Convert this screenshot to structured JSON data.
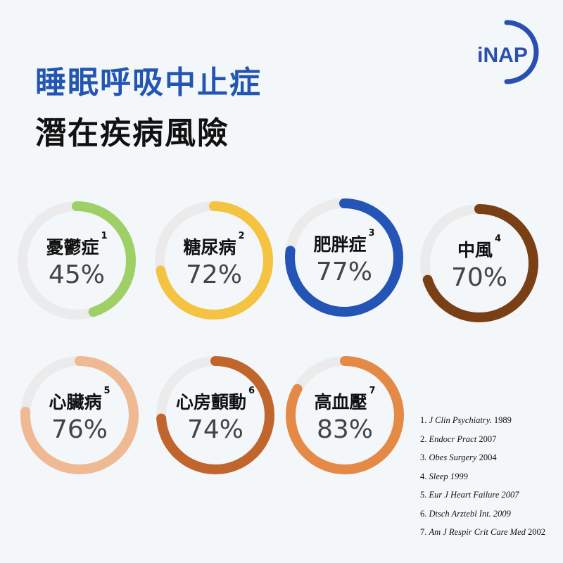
{
  "title_line1": "睡眠呼吸中止症",
  "title_line2": "潛在疾病風險",
  "logo_text": "iNAP",
  "colors": {
    "title_blue": "#2356b3",
    "ring_track": "#ebebeb",
    "logo_blue": "#2a4fb0"
  },
  "chart_data": {
    "type": "donut-grid",
    "title": "睡眠呼吸中止症 潛在疾病風險",
    "unit": "%",
    "items": [
      {
        "name": "憂鬱症",
        "ref": "1",
        "value": 45,
        "label": "45%",
        "color": "#9fd067"
      },
      {
        "name": "糖尿病",
        "ref": "2",
        "value": 72,
        "label": "72%",
        "color": "#f5c342"
      },
      {
        "name": "肥胖症",
        "ref": "3",
        "value": 77,
        "label": "77%",
        "color": "#2454b5"
      },
      {
        "name": "中風",
        "ref": "4",
        "value": 70,
        "label": "70%",
        "color": "#7b3f15"
      },
      {
        "name": "心臟病",
        "ref": "5",
        "value": 76,
        "label": "76%",
        "color": "#efba93"
      },
      {
        "name": "心房顫動",
        "ref": "6",
        "value": 74,
        "label": "74%",
        "color": "#c0662c"
      },
      {
        "name": "高血壓",
        "ref": "7",
        "value": 83,
        "label": "83%",
        "color": "#e58a46"
      }
    ]
  },
  "references": [
    {
      "num": "1.",
      "journal": "J Clin Psychiatry.",
      "year": "1989"
    },
    {
      "num": "2.",
      "journal": "Endocr Pract",
      "year": "2007"
    },
    {
      "num": "3.",
      "journal": "Obes Surgery",
      "year": "2004"
    },
    {
      "num": "4.",
      "journal": "Sleep 1999",
      "year": ""
    },
    {
      "num": "5.",
      "journal": "Eur J Heart Failure 2007",
      "year": ""
    },
    {
      "num": "6.",
      "journal": "Dtsch Arztebl Int. 2009",
      "year": ""
    },
    {
      "num": "7.",
      "journal": "Am J Respir Crit Care Med",
      "year": "2002"
    }
  ]
}
